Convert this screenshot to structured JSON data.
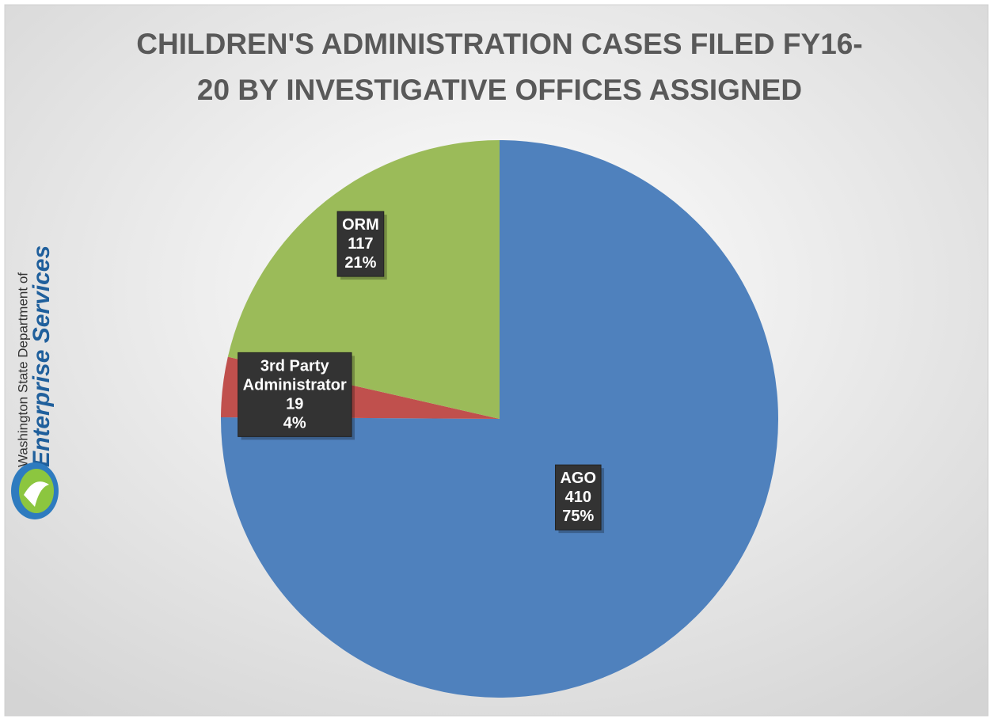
{
  "chart_data": {
    "type": "pie",
    "title": [
      "CHILDREN'S ADMINISTRATION CASES FILED FY16-",
      "20 BY INVESTIGATIVE OFFICES ASSIGNED"
    ],
    "categories": [
      "AGO",
      "3rd Party Administrator",
      "ORM"
    ],
    "values": [
      410,
      19,
      117
    ],
    "percent_labels": [
      "75%",
      "4%",
      "21%"
    ],
    "colors": [
      "#4f81bd",
      "#c0504d",
      "#9bbb59"
    ],
    "logo": {
      "line1": "Washington State Department of",
      "line2": "Enterprise Services"
    }
  }
}
